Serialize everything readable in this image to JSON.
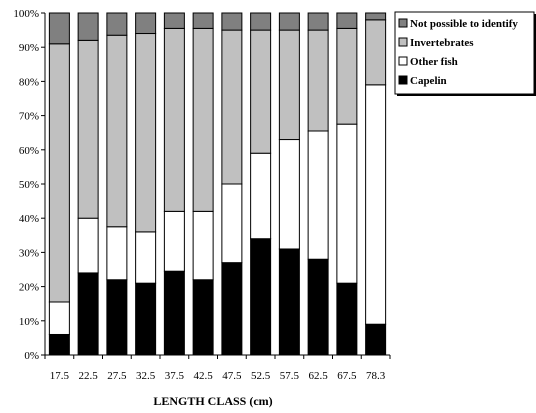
{
  "chart_data": {
    "type": "bar",
    "stacked": true,
    "normalized": true,
    "categories": [
      "17.5",
      "22.5",
      "27.5",
      "32.5",
      "37.5",
      "42.5",
      "47.5",
      "52.5",
      "57.5",
      "62.5",
      "67.5",
      "78.3"
    ],
    "series": [
      {
        "name": "Capelin",
        "color": "#000000",
        "values": [
          6,
          24,
          22,
          21,
          24.5,
          22,
          27,
          34,
          31,
          28,
          21,
          9
        ]
      },
      {
        "name": "Other fish",
        "color": "#ffffff",
        "values": [
          9.5,
          16,
          15.5,
          15,
          17.5,
          20,
          23,
          25,
          32,
          37.5,
          46.5,
          70
        ]
      },
      {
        "name": "Invertebrates",
        "color": "#c0c0c0",
        "values": [
          75.5,
          52,
          56,
          58,
          53.5,
          53.5,
          45,
          36,
          32,
          29.5,
          28,
          19
        ]
      },
      {
        "name": "Not possible to identify",
        "color": "#808080",
        "values": [
          9,
          8,
          6.5,
          6,
          4.5,
          4.5,
          5,
          5,
          5,
          5,
          4.5,
          2
        ]
      }
    ],
    "legend_order": [
      "Not possible to identify",
      "Invertebrates",
      "Other fish",
      "Capelin"
    ],
    "y_ticks": [
      "0%",
      "10%",
      "20%",
      "30%",
      "40%",
      "50%",
      "60%",
      "70%",
      "80%",
      "90%",
      "100%"
    ],
    "ylim": [
      0,
      100
    ],
    "xlabel": "LENGTH CLASS (cm)",
    "ylabel": "",
    "title": "",
    "grid": false,
    "legend_position": "top-right"
  }
}
